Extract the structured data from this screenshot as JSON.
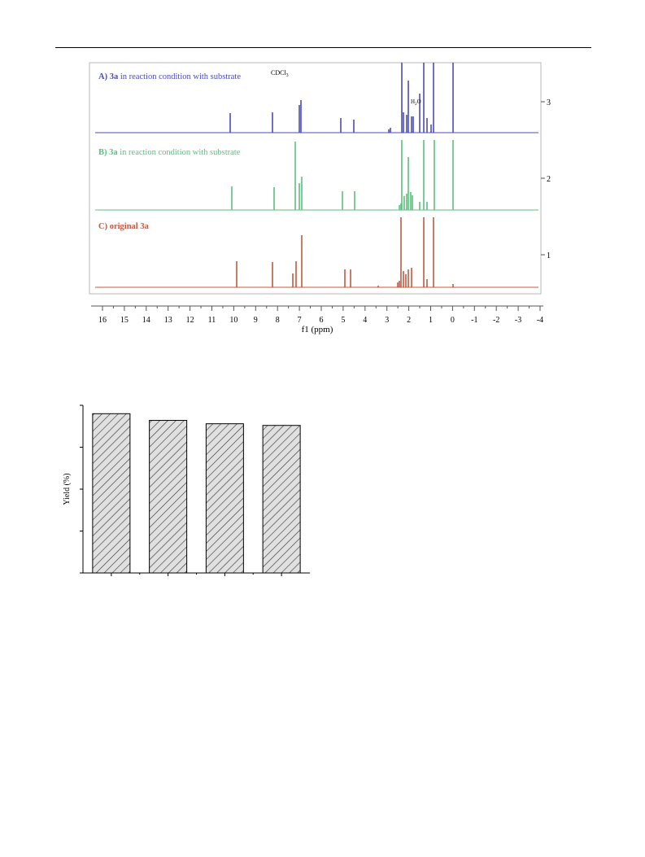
{
  "nmr_figure": {
    "spectra": [
      {
        "label_prefix": "A) ",
        "label_compound": "3a",
        "label_rest": " in reaction condition with substrate",
        "color": "#4b4bb5"
      },
      {
        "label_prefix": "B) ",
        "label_compound": "3a",
        "label_rest": " in reaction condition with substrate",
        "color": "#5cbf7f"
      },
      {
        "label_prefix": "C) ",
        "label_compound": "original 3a",
        "label_rest": "",
        "color": "#c05a40"
      }
    ],
    "annotations": {
      "solvent": "CDCl",
      "solvent_sub": "3",
      "water": "H",
      "water_sub": "2",
      "water_end": "O"
    },
    "x_axis": {
      "label": "f1 (ppm)",
      "ticks": [
        "16",
        "15",
        "14",
        "13",
        "12",
        "11",
        "10",
        "9",
        "8",
        "7",
        "6",
        "5",
        "4",
        "3",
        "2",
        "1",
        "0",
        "-1",
        "-2",
        "-3",
        "-4"
      ]
    },
    "y_axis": {
      "ticks": [
        "3",
        "2",
        "1"
      ]
    }
  },
  "chart_data": {
    "type": "bar",
    "categories": [
      "",
      "",
      "",
      ""
    ],
    "values": [
      95,
      91,
      89,
      88
    ],
    "ylim": [
      0,
      100
    ],
    "xlabel": "",
    "ylabel": "Yield (%)",
    "title": "",
    "bar_fill": "hatched",
    "grid": false
  }
}
